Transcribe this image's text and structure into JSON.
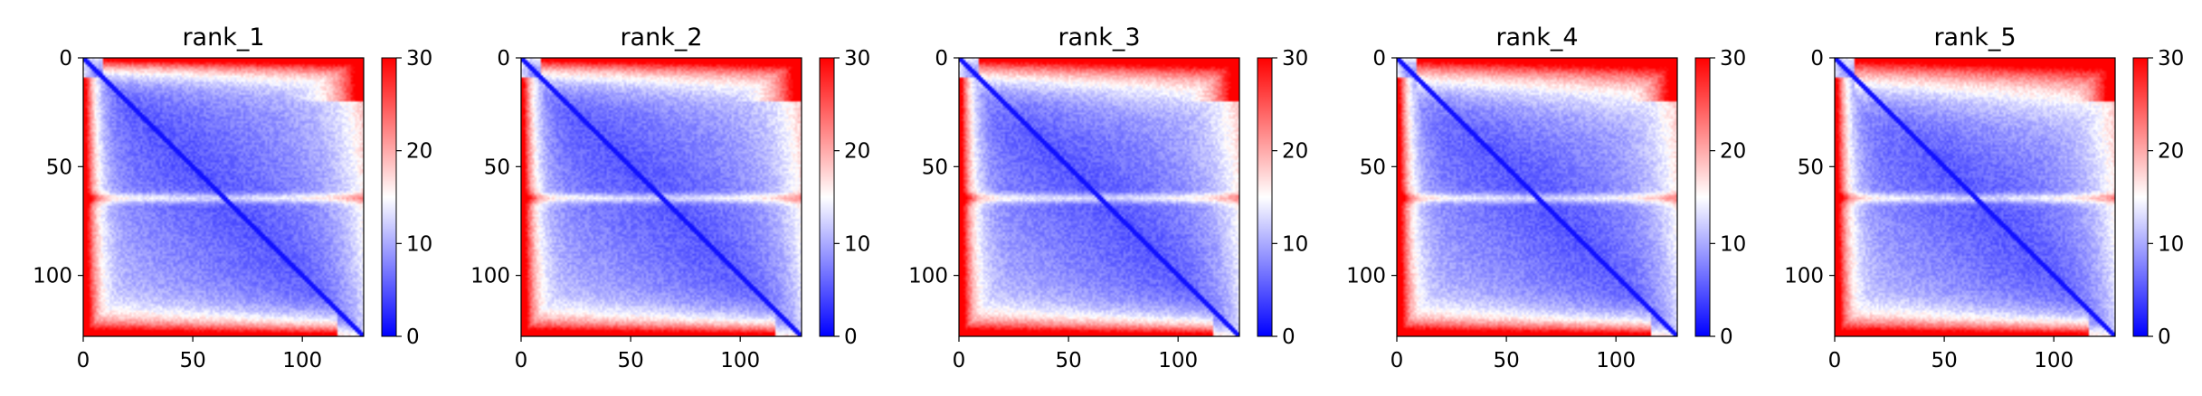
{
  "chart_data": [
    {
      "type": "heatmap",
      "title": "rank_1",
      "xlabel": "",
      "ylabel": "",
      "x_range": [
        0,
        128
      ],
      "y_range": [
        128,
        0
      ],
      "x_ticks": [
        0,
        50,
        100
      ],
      "y_ticks": [
        0,
        50,
        100
      ],
      "colorbar": {
        "range": [
          0,
          30
        ],
        "ticks": [
          0,
          10,
          20,
          30
        ],
        "colormap": "bwr"
      },
      "band_row": 64,
      "matrix_size": 128
    },
    {
      "type": "heatmap",
      "title": "rank_2",
      "xlabel": "",
      "ylabel": "",
      "x_range": [
        0,
        128
      ],
      "y_range": [
        128,
        0
      ],
      "x_ticks": [
        0,
        50,
        100
      ],
      "y_ticks": [
        0,
        50,
        100
      ],
      "colorbar": {
        "range": [
          0,
          30
        ],
        "ticks": [
          0,
          10,
          20,
          30
        ],
        "colormap": "bwr"
      },
      "band_row": 64,
      "matrix_size": 128
    },
    {
      "type": "heatmap",
      "title": "rank_3",
      "xlabel": "",
      "ylabel": "",
      "x_range": [
        0,
        128
      ],
      "y_range": [
        128,
        0
      ],
      "x_ticks": [
        0,
        50,
        100
      ],
      "y_ticks": [
        0,
        50,
        100
      ],
      "colorbar": {
        "range": [
          0,
          30
        ],
        "ticks": [
          0,
          10,
          20,
          30
        ],
        "colormap": "bwr"
      },
      "band_row": 64,
      "matrix_size": 128
    },
    {
      "type": "heatmap",
      "title": "rank_4",
      "xlabel": "",
      "ylabel": "",
      "x_range": [
        0,
        128
      ],
      "y_range": [
        128,
        0
      ],
      "x_ticks": [
        0,
        50,
        100
      ],
      "y_ticks": [
        0,
        50,
        100
      ],
      "colorbar": {
        "range": [
          0,
          30
        ],
        "ticks": [
          0,
          10,
          20,
          30
        ],
        "colormap": "bwr"
      },
      "band_row": 64,
      "matrix_size": 128
    },
    {
      "type": "heatmap",
      "title": "rank_5",
      "xlabel": "",
      "ylabel": "",
      "x_range": [
        0,
        128
      ],
      "y_range": [
        128,
        0
      ],
      "x_ticks": [
        0,
        50,
        100
      ],
      "y_ticks": [
        0,
        50,
        100
      ],
      "colorbar": {
        "range": [
          0,
          30
        ],
        "ticks": [
          0,
          10,
          20,
          30
        ],
        "colormap": "bwr"
      },
      "band_row": 64,
      "matrix_size": 128
    }
  ],
  "colors": {
    "low": "#0000ff",
    "mid": "#ffffff",
    "high": "#ff0000"
  }
}
